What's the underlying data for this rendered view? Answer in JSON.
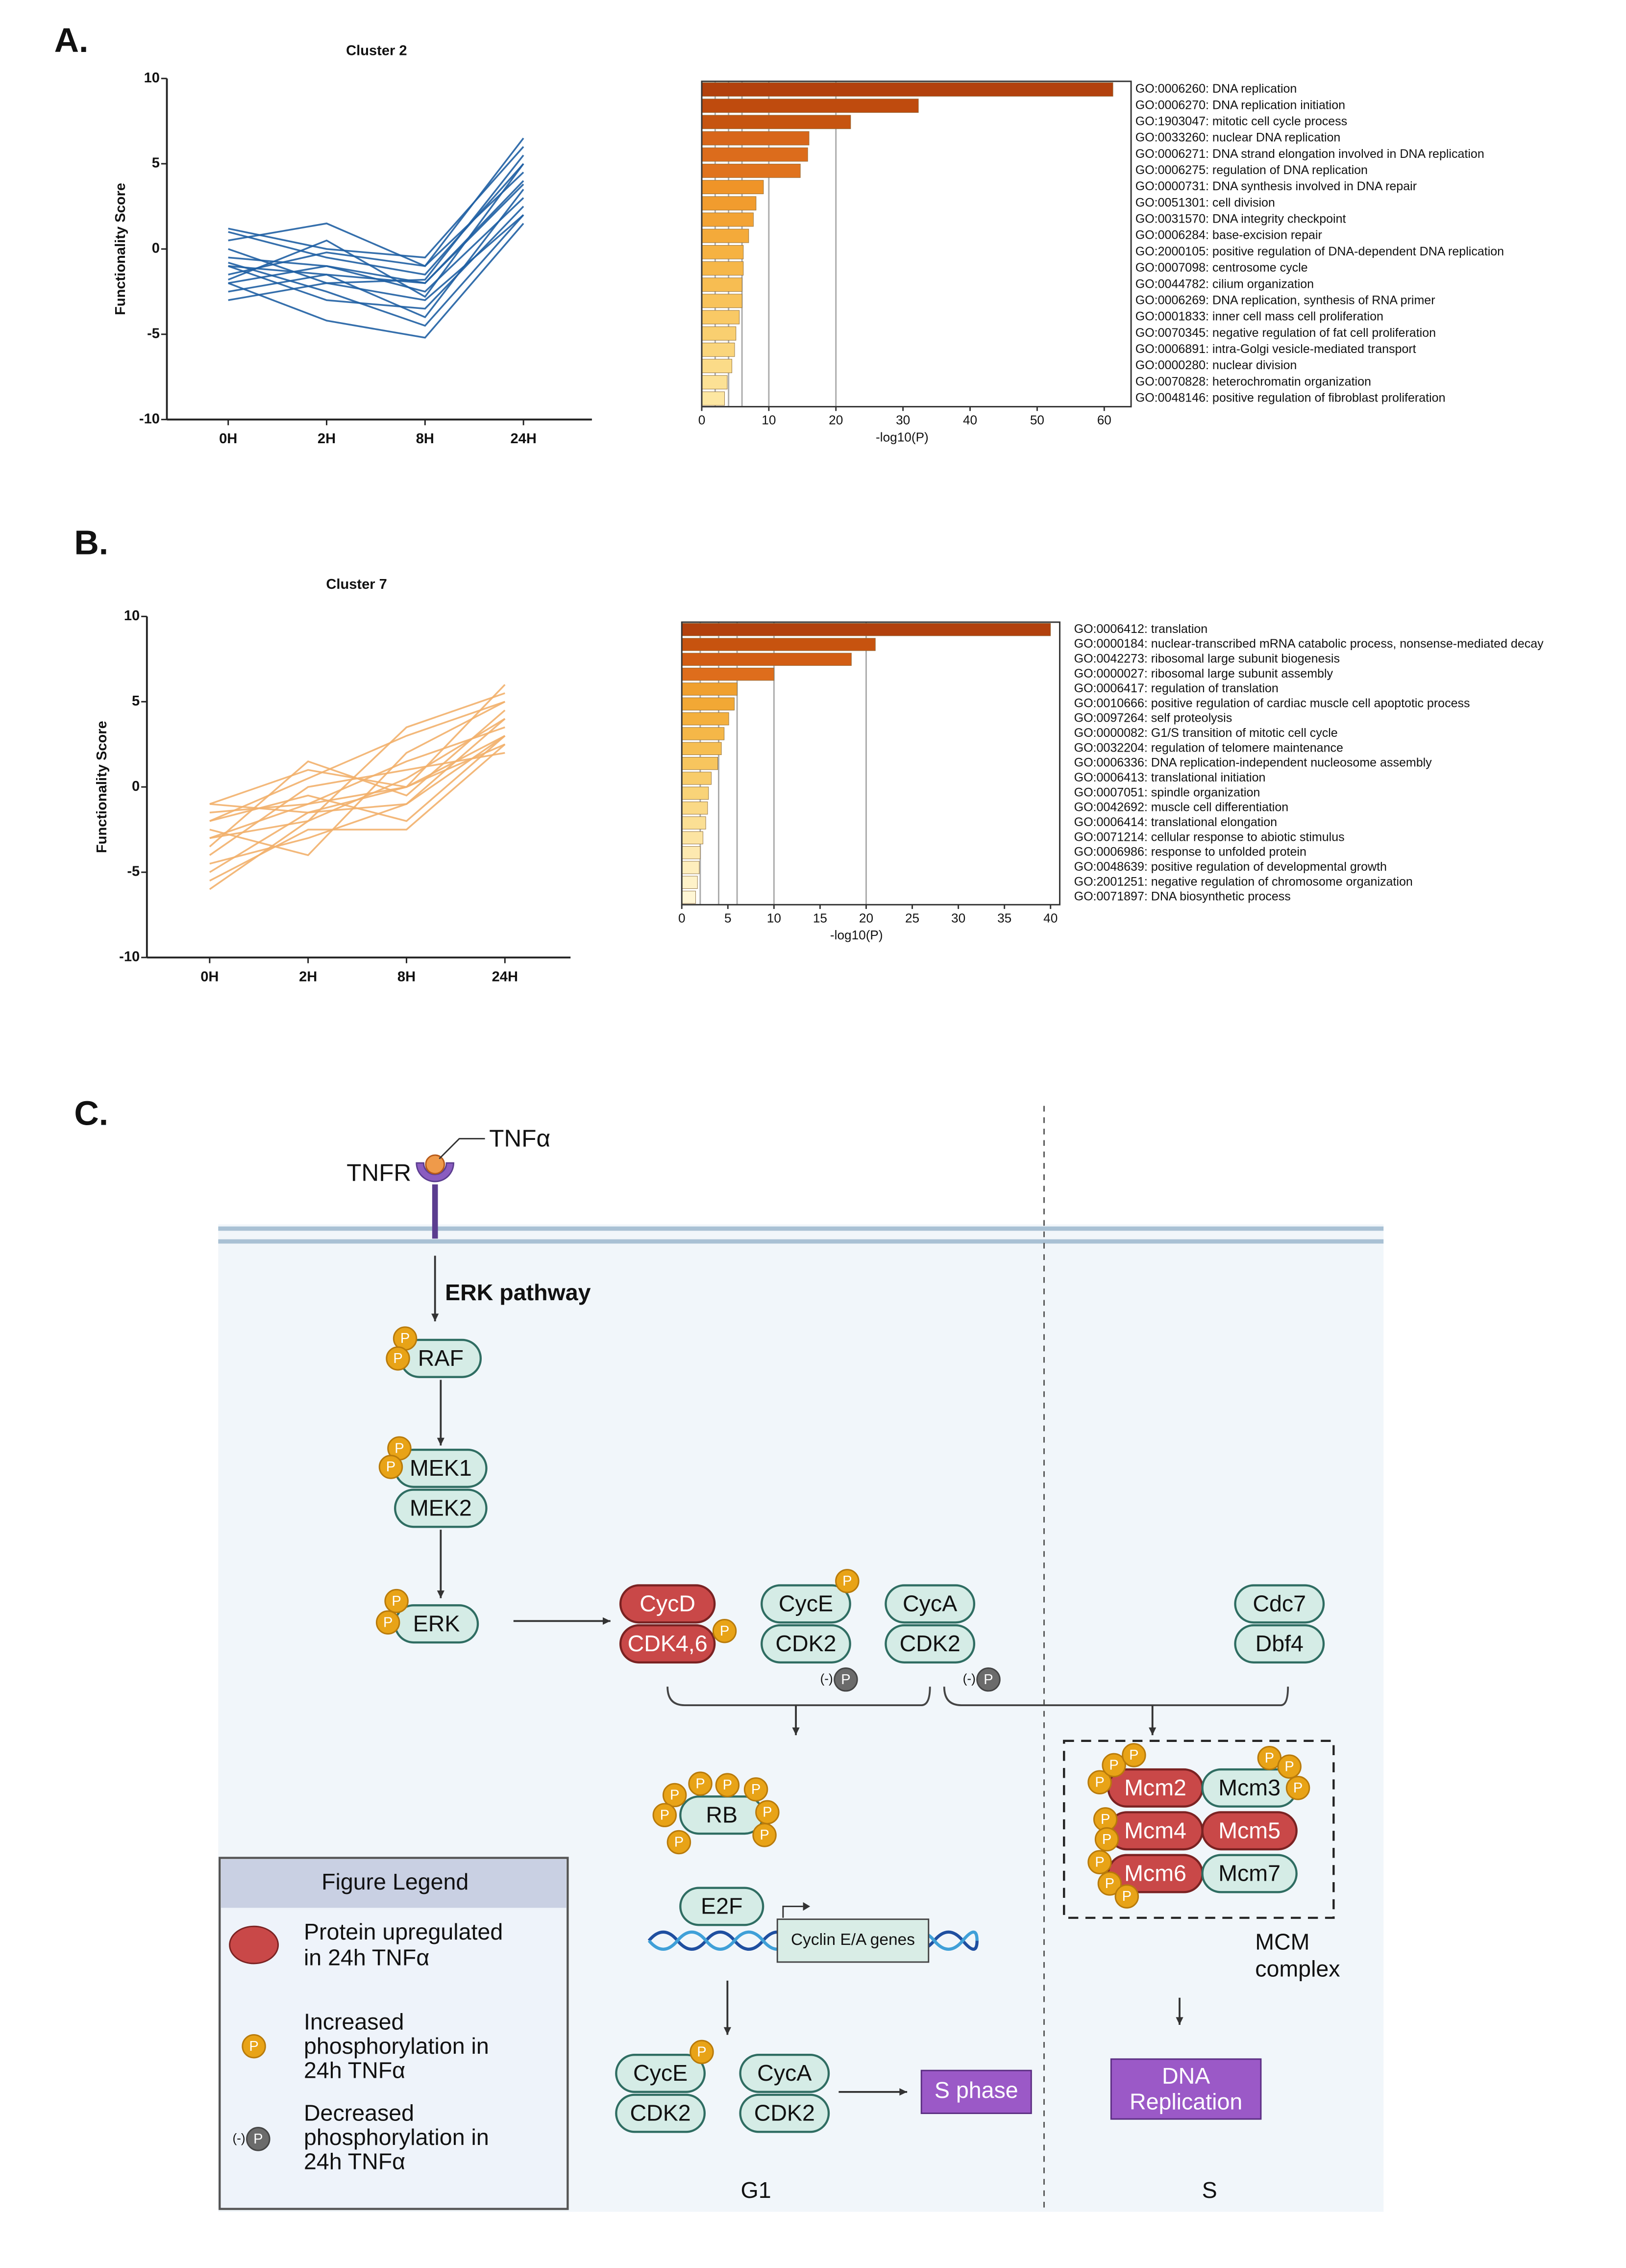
{
  "chart_data": [
    {
      "type": "line",
      "title": "Cluster 2",
      "ylabel": "Functionality Score",
      "categories": [
        "0H",
        "2H",
        "8H",
        "24H"
      ],
      "ylim": [
        -10,
        10
      ],
      "yticks": [
        -10,
        -5,
        0,
        5,
        10
      ],
      "series": [
        {
          "color": "#1f5fa3",
          "values": [
            -1,
            -1.5,
            -2,
            4
          ]
        },
        {
          "color": "#1f5fa3",
          "values": [
            1,
            -0.5,
            -1.5,
            5
          ]
        },
        {
          "color": "#1f5fa3",
          "values": [
            -3,
            -2,
            -3,
            2
          ]
        },
        {
          "color": "#1f5fa3",
          "values": [
            0.5,
            1.5,
            -1,
            6.5
          ]
        },
        {
          "color": "#1f5fa3",
          "values": [
            -2,
            -4.2,
            -5.2,
            1.5
          ]
        },
        {
          "color": "#1f5fa3",
          "values": [
            -0.5,
            -1,
            -2.5,
            3
          ]
        },
        {
          "color": "#1f5fa3",
          "values": [
            -1.5,
            -0.2,
            -1,
            4.5
          ]
        },
        {
          "color": "#1f5fa3",
          "values": [
            -2.5,
            -1.5,
            -4,
            3.5
          ]
        },
        {
          "color": "#1f5fa3",
          "values": [
            0,
            -2,
            -1.8,
            5.5
          ]
        },
        {
          "color": "#1f5fa3",
          "values": [
            -1,
            -3,
            -3.5,
            2.5
          ]
        },
        {
          "color": "#1f5fa3",
          "values": [
            1.2,
            0,
            -0.5,
            6
          ]
        },
        {
          "color": "#1f5fa3",
          "values": [
            -2,
            -1,
            -2,
            3.8
          ]
        },
        {
          "color": "#1f5fa3",
          "values": [
            -0.8,
            -2.5,
            -4.5,
            2
          ]
        },
        {
          "color": "#1f5fa3",
          "values": [
            -1.8,
            0.5,
            -2.8,
            5
          ]
        }
      ]
    },
    {
      "type": "bar",
      "orientation": "horizontal",
      "xlabel": "-log10(P)",
      "xlim": [
        0,
        64
      ],
      "xticks": [
        0,
        10,
        20,
        30,
        40,
        50,
        60
      ],
      "reference_lines": [
        2,
        4,
        6,
        10,
        20
      ],
      "categories": [
        "GO:0006260: DNA replication",
        "GO:0006270: DNA replication initiation",
        "GO:1903047: mitotic cell cycle process",
        "GO:0033260: nuclear DNA replication",
        "GO:0006271: DNA strand elongation involved in DNA replication",
        "GO:0006275: regulation of DNA replication",
        "GO:0000731: DNA synthesis involved in DNA repair",
        "GO:0051301: cell division",
        "GO:0031570: DNA integrity checkpoint",
        "GO:0006284: base-excision repair",
        "GO:2000105: positive regulation of DNA-dependent DNA replication",
        "GO:0007098: centrosome cycle",
        "GO:0044782: cilium organization",
        "GO:0006269: DNA replication, synthesis of RNA primer",
        "GO:0001833: inner cell mass cell proliferation",
        "GO:0070345: negative regulation of fat cell proliferation",
        "GO:0006891: intra-Golgi vesicle-mediated transport",
        "GO:0000280: nuclear division",
        "GO:0070828: heterochromatin organization",
        "GO:0048146: positive regulation of fibroblast proliferation"
      ],
      "values": [
        61.3,
        32.3,
        22.2,
        16,
        15.8,
        14.7,
        9.2,
        8.1,
        7.7,
        7,
        6.2,
        6.2,
        6,
        6,
        5.6,
        5.1,
        4.9,
        4.5,
        3.8,
        3.4
      ],
      "colors": [
        "#b2410d",
        "#bf4b0e",
        "#c65410",
        "#d8661a",
        "#dc6c1c",
        "#e0731e",
        "#ef9428",
        "#f19c2e",
        "#f3a334",
        "#f4aa3a",
        "#f6b242",
        "#f6b749",
        "#f7bd52",
        "#f8c35b",
        "#f9c965",
        "#f9cf70",
        "#fad57c",
        "#fbdb88",
        "#fce195",
        "#fde7a2"
      ]
    },
    {
      "type": "line",
      "title": "Cluster 7",
      "ylabel": "Functionality Score",
      "categories": [
        "0H",
        "2H",
        "8H",
        "24H"
      ],
      "ylim": [
        -10,
        10
      ],
      "yticks": [
        -10,
        -5,
        0,
        5,
        10
      ],
      "series": [
        {
          "color": "#f2b06b",
          "values": [
            -3,
            -1,
            0,
            3
          ]
        },
        {
          "color": "#f2b06b",
          "values": [
            -5,
            -1.5,
            -1,
            4
          ]
        },
        {
          "color": "#f2b06b",
          "values": [
            -1,
            1,
            0,
            6
          ]
        },
        {
          "color": "#f2b06b",
          "values": [
            -6,
            -2,
            3.5,
            5.5
          ]
        },
        {
          "color": "#f2b06b",
          "values": [
            -2,
            -0.5,
            -2,
            3
          ]
        },
        {
          "color": "#f2b06b",
          "values": [
            -4,
            0,
            1,
            2
          ]
        },
        {
          "color": "#f2b06b",
          "values": [
            -3.5,
            1.5,
            -0.5,
            4.5
          ]
        },
        {
          "color": "#f2b06b",
          "values": [
            -2.5,
            -4,
            2,
            5
          ]
        },
        {
          "color": "#f2b06b",
          "values": [
            -1.5,
            -1,
            1.5,
            3.5
          ]
        },
        {
          "color": "#f2b06b",
          "values": [
            -5.5,
            -2.5,
            -2.5,
            2.5
          ]
        },
        {
          "color": "#f2b06b",
          "values": [
            -3,
            -2,
            0.5,
            4
          ]
        },
        {
          "color": "#f2b06b",
          "values": [
            -2,
            0.5,
            3,
            5
          ]
        },
        {
          "color": "#f2b06b",
          "values": [
            -4.5,
            -3,
            -1,
            3
          ]
        },
        {
          "color": "#f2b06b",
          "values": [
            -1,
            -1.5,
            0,
            2.5
          ]
        }
      ]
    },
    {
      "type": "bar",
      "orientation": "horizontal",
      "xlabel": "-log10(P)",
      "xlim": [
        0,
        41
      ],
      "xticks": [
        0,
        5,
        10,
        15,
        20,
        25,
        30,
        35,
        40
      ],
      "reference_lines": [
        2,
        4,
        6,
        10,
        20
      ],
      "categories": [
        "GO:0006412: translation",
        "GO:0000184: nuclear-transcribed mRNA catabolic process, nonsense-mediated decay",
        "GO:0042273: ribosomal large subunit biogenesis",
        "GO:0000027: ribosomal large subunit assembly",
        "GO:0006417: regulation of translation",
        "GO:0010666: positive regulation of cardiac muscle cell apoptotic process",
        "GO:0097264: self proteolysis",
        "GO:0000082: G1/S transition of mitotic cell cycle",
        "GO:0032204: regulation of telomere maintenance",
        "GO:0006336: DNA replication-independent nucleosome assembly",
        "GO:0006413: translational initiation",
        "GO:0007051: spindle organization",
        "GO:0042692: muscle cell differentiation",
        "GO:0006414: translational elongation",
        "GO:0071214: cellular response to abiotic stimulus",
        "GO:0006986: response to unfolded protein",
        "GO:0048639: positive regulation of developmental growth",
        "GO:2001251: negative regulation of chromosome organization",
        "GO:0071897: DNA biosynthetic process"
      ],
      "values": [
        40,
        21,
        18.4,
        10,
        6,
        5.7,
        5.1,
        4.6,
        4.3,
        3.9,
        3.2,
        2.9,
        2.8,
        2.6,
        2.3,
        2,
        1.9,
        1.7,
        1.5
      ],
      "colors": [
        "#b2410d",
        "#c7530f",
        "#d25d14",
        "#de6d1c",
        "#f0a02f",
        "#f2a835",
        "#f4b03e",
        "#f5b748",
        "#f6be52",
        "#f7c55e",
        "#f8cc6b",
        "#f9d378",
        "#fad986",
        "#fbdf94",
        "#fce4a2",
        "#fde9b0",
        "#feeebd",
        "#fef2c9",
        "#fff6d5"
      ]
    }
  ],
  "diagram": {
    "panel_labels": [
      "A.",
      "B.",
      "C."
    ],
    "ligand": "TNFα",
    "receptor": "TNFR",
    "pathway": "ERK pathway",
    "phosphate": "P",
    "dephosphorylated": "(-)",
    "nodes": [
      "RAF",
      "MEK1",
      "MEK2",
      "ERK",
      "CycD",
      "CDK4,6",
      "CycE",
      "CDK2",
      "CycA",
      "CDK2",
      "Cdc7",
      "Dbf4",
      "RB",
      "E2F",
      "Mcm2",
      "Mcm3",
      "Mcm4",
      "Mcm5",
      "Mcm6",
      "Mcm7",
      "CycE",
      "CDK2",
      "CycA",
      "CDK2"
    ],
    "gene_box": "Cyclin E/A genes",
    "complex_label": [
      "MCM",
      "complex"
    ],
    "outputs": {
      "s_phase": "S phase",
      "dna_replication": [
        "DNA",
        "Replication"
      ]
    },
    "phases": [
      "G1",
      "S"
    ],
    "legend": {
      "title": "Figure Legend",
      "items": [
        [
          "Protein upregulated",
          "in  24h TNFα"
        ],
        [
          "Increased",
          "phosphorylation in",
          "24h TNFα"
        ],
        [
          "Decreased",
          "phosphorylation in",
          "24h TNFα"
        ]
      ]
    }
  }
}
